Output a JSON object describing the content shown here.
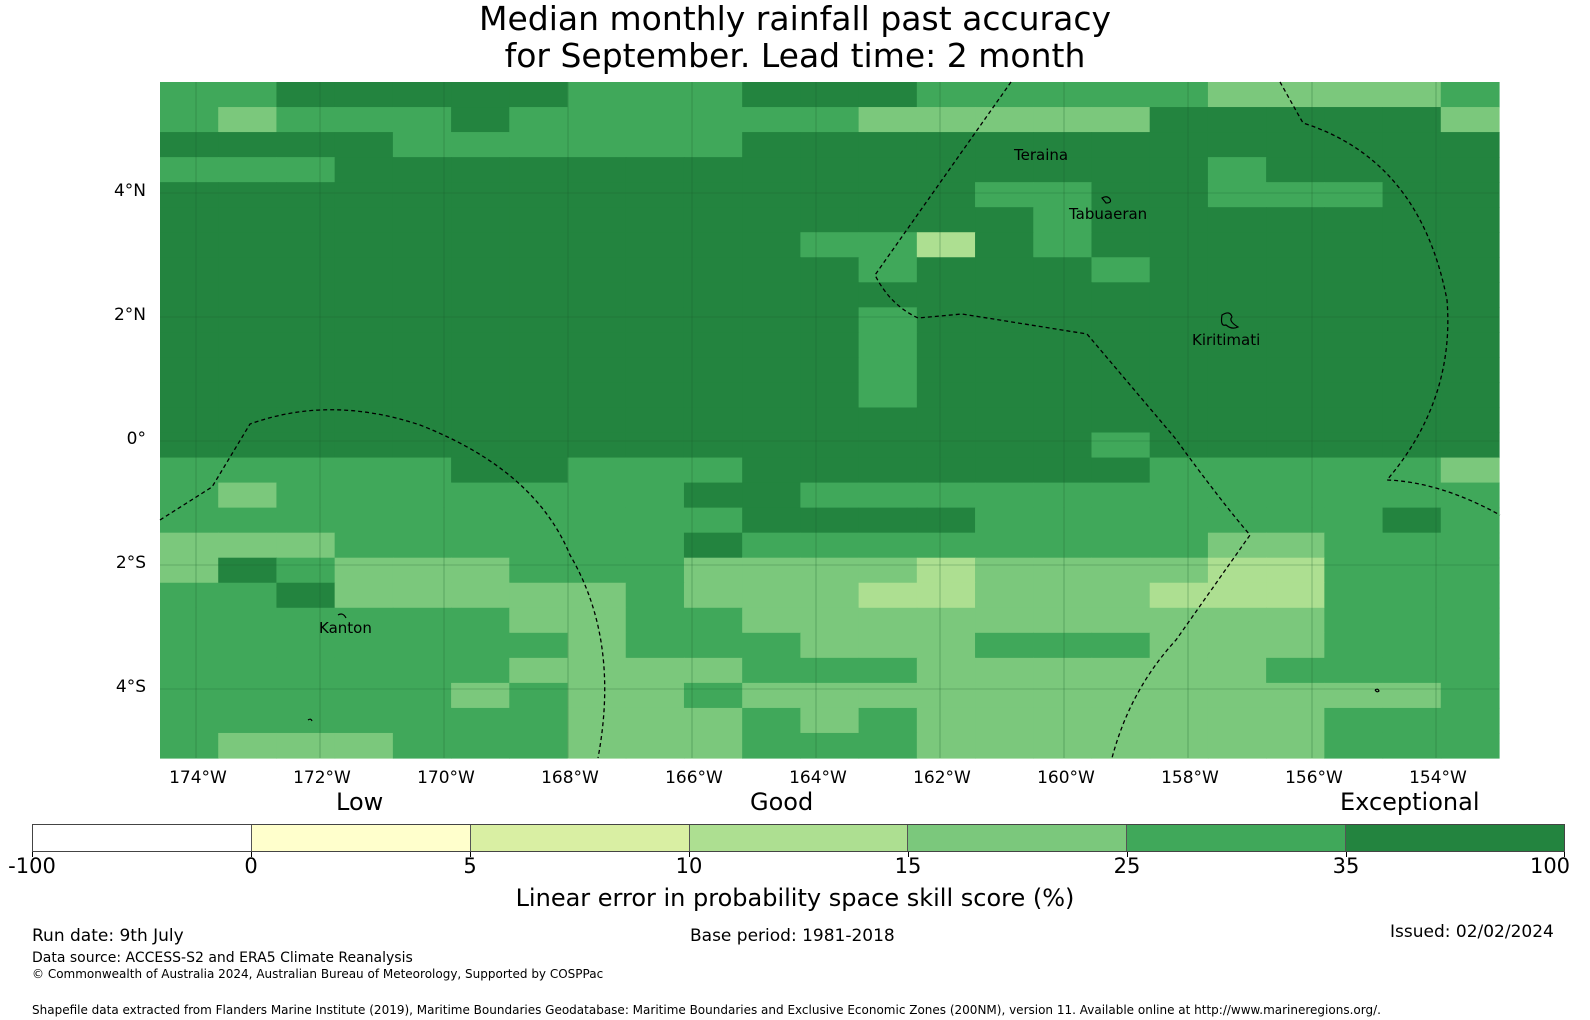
{
  "title_line1": "Median monthly rainfall past accuracy",
  "title_line2": "for September. Lead time: 2 month",
  "colors": {
    "c35_100": "#23843f",
    "c25_35": "#40a85a",
    "c15_25": "#7bc87c",
    "c10_15": "#addf91",
    "c5_10": "#d9efa3",
    "c0_5": "#ffffcc",
    "cneg": "#ffffff",
    "grid": "#1a5c2c"
  },
  "map": {
    "lat_labels": [
      "4°N",
      "2°N",
      "0°",
      "2°S",
      "4°S"
    ],
    "lon_labels": [
      "174°W",
      "172°W",
      "170°W",
      "168°W",
      "166°W",
      "164°W",
      "162°W",
      "160°W",
      "158°W",
      "156°W",
      "154°W"
    ],
    "places": [
      "Teraina",
      "Tabuaeran",
      "Kiritimati",
      "Kanton"
    ],
    "grid_rows": [
      "22111112221112222233332",
      "23222122222233333111113",
      "11112222221111111111111",
      "22211111111111111121111",
      "11111111111111221122211",
      "11111111111111121111111",
      "11111111111224121111111",
      "11111111111121112111111",
      "11111111111111111111111",
      "11111111111121111111111",
      "11111111111121111111111",
      "11111111111121111111111",
      "11111111111121111111111",
      "11111111111111111111111",
      "11111111111111112111111",
      "22222112221111111222223",
      "23222222211222222222222",
      "22222222221111222222212",
      "33322222212222222233222",
      "31233322233334333344222",
      "22133333233344333444222",
      "22222233223333333333222",
      "22222223222333222333222",
      "22222233332223333332222",
      "22222323323333333333332",
      "22222223332323333333222",
      "23332223332223333333222"
    ]
  },
  "colorbar": {
    "categories": [
      "Low",
      "Good",
      "Exceptional"
    ],
    "ticks": [
      "-100",
      "0",
      "5",
      "10",
      "15",
      "25",
      "35",
      "100"
    ],
    "label": "Linear error in probability space skill score (%)"
  },
  "footer": {
    "run_date": "Run date: 9th July",
    "base_period": "Base period: 1981-2018",
    "issued": "Issued: 02/02/2024",
    "data_source": "Data source: ACCESS-S2 and ERA5 Climate Reanalysis",
    "copyright": "© Commonwealth of Australia 2024, Australian Bureau of Meteorology, Supported by COSPPac",
    "shapefile": "Shapefile data extracted from Flanders Marine Institute (2019), Maritime Boundaries Geodatabase: Maritime Boundaries and Exclusive Economic Zones (200NM), version 11. Available online at http://www.marineregions.org/."
  }
}
